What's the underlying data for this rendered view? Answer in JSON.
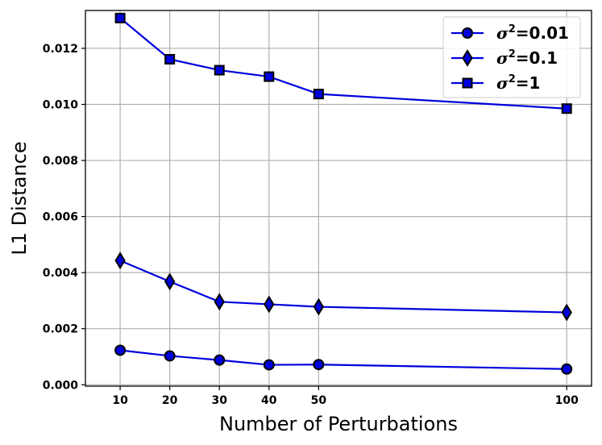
{
  "chart_data": {
    "type": "line",
    "xlabel": "Number of Perturbations",
    "ylabel": "L1 Distance",
    "x": [
      10,
      20,
      30,
      40,
      50,
      100
    ],
    "xticks": [
      "10",
      "20",
      "30",
      "40",
      "50",
      "100"
    ],
    "yticks": [
      "0.000",
      "0.002",
      "0.004",
      "0.006",
      "0.008",
      "0.010",
      "0.012"
    ],
    "xlim": [
      3,
      105
    ],
    "ylim": [
      -5e-05,
      0.01335
    ],
    "grid": true,
    "legend_position": "top-right",
    "series": [
      {
        "name": "σ²=0.01",
        "legend_var": "σ",
        "legend_exp": "2",
        "legend_rest": "=0.01",
        "marker": "circle",
        "values": [
          0.00123,
          0.00103,
          0.00088,
          0.00071,
          0.00072,
          0.00056
        ]
      },
      {
        "name": "σ²=0.1",
        "legend_var": "σ",
        "legend_exp": "2",
        "legend_rest": "=0.1",
        "marker": "diamond",
        "values": [
          0.00443,
          0.00368,
          0.00296,
          0.00287,
          0.00278,
          0.00258
        ]
      },
      {
        "name": "σ²=1",
        "legend_var": "σ",
        "legend_exp": "2",
        "legend_rest": "=1",
        "marker": "square",
        "values": [
          0.01308,
          0.01161,
          0.01122,
          0.01099,
          0.01037,
          0.00985
        ]
      }
    ],
    "line_color": "#0000dd",
    "marker_fill": "#0000dd",
    "marker_edge": "#000000"
  }
}
